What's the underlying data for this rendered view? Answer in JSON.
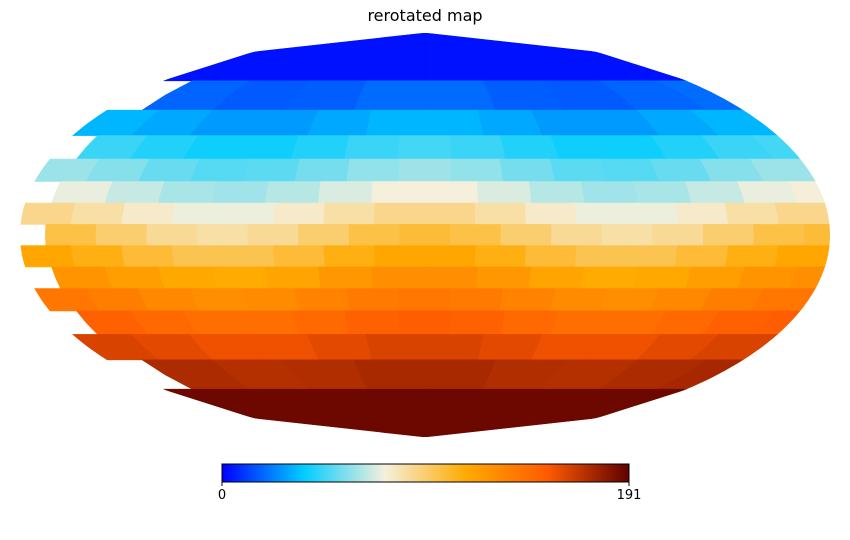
{
  "chart_data": {
    "type": "heatmap",
    "title": "rerotated map",
    "projection": "mollweide",
    "colormap": [
      "#0000ff",
      "#00ccff",
      "#f5f0dc",
      "#ffaa00",
      "#ff5a00",
      "#600000"
    ],
    "colorbar": {
      "min": 0,
      "max": 191,
      "tick_labels": [
        "0",
        "191"
      ]
    },
    "grid": false
  }
}
